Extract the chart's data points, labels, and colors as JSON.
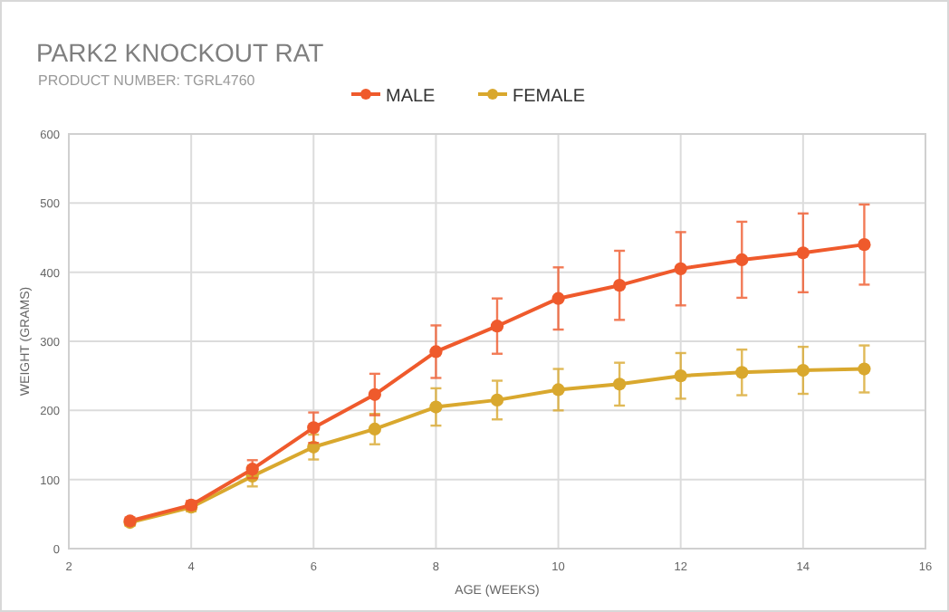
{
  "chart_data": {
    "type": "line",
    "title": "PARK2 KNOCKOUT RAT",
    "subtitle": "PRODUCT NUMBER: TGRL4760",
    "xlabel": "AGE (WEEKS)",
    "ylabel": "WEIGHT (GRAMS)",
    "x": [
      3,
      4,
      5,
      6,
      7,
      8,
      9,
      10,
      11,
      12,
      13,
      14,
      15
    ],
    "series": [
      {
        "name": "MALE",
        "color": "#ef5a2c",
        "values": [
          40,
          63,
          115,
          175,
          223,
          285,
          322,
          362,
          381,
          405,
          418,
          428,
          440
        ],
        "errors": [
          5,
          6,
          13,
          22,
          30,
          38,
          40,
          45,
          50,
          53,
          55,
          57,
          58
        ]
      },
      {
        "name": "FEMALE",
        "color": "#d9a82e",
        "values": [
          38,
          60,
          105,
          147,
          173,
          205,
          215,
          230,
          238,
          250,
          255,
          258,
          260
        ],
        "errors": [
          5,
          6,
          15,
          18,
          22,
          27,
          28,
          30,
          31,
          33,
          33,
          34,
          34
        ]
      }
    ],
    "xlim": [
      2,
      16
    ],
    "xticks": [
      2,
      4,
      6,
      8,
      10,
      12,
      14,
      16
    ],
    "ylim": [
      0,
      600
    ],
    "yticks": [
      0,
      100,
      200,
      300,
      400,
      500,
      600
    ],
    "grid": true,
    "legend": "top",
    "marker": "circle",
    "line_style": "solid"
  }
}
